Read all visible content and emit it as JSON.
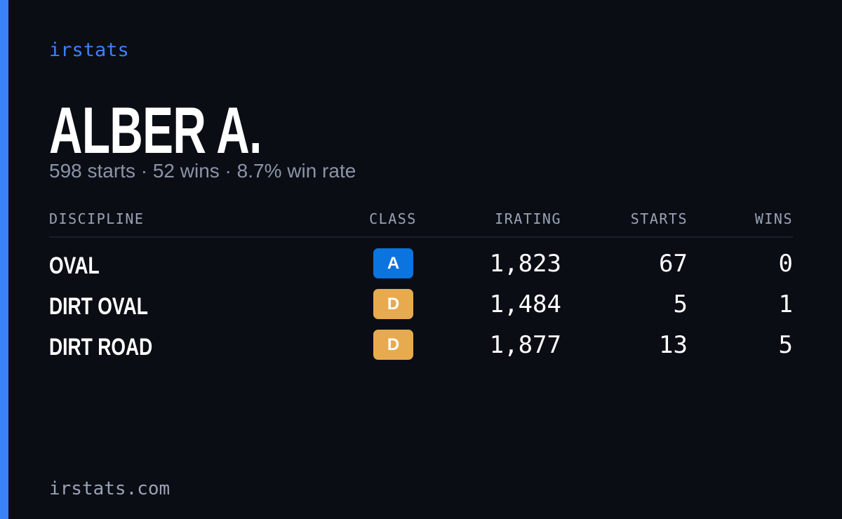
{
  "brand": "irstats",
  "driver": {
    "name": "ALBER A.",
    "summary": "598 starts · 52 wins · 8.7% win rate"
  },
  "table": {
    "headers": [
      "DISCIPLINE",
      "CLASS",
      "IRATING",
      "STARTS",
      "WINS"
    ],
    "rows": [
      {
        "discipline": "OVAL",
        "class": "A",
        "class_color": "#0b74de",
        "irating": "1,823",
        "starts": "67",
        "wins": "0"
      },
      {
        "discipline": "DIRT OVAL",
        "class": "D",
        "class_color": "#e8aa4e",
        "irating": "1,484",
        "starts": "5",
        "wins": "1"
      },
      {
        "discipline": "DIRT ROAD",
        "class": "D",
        "class_color": "#e8aa4e",
        "irating": "1,877",
        "starts": "13",
        "wins": "5"
      }
    ]
  },
  "footer": "irstats.com"
}
